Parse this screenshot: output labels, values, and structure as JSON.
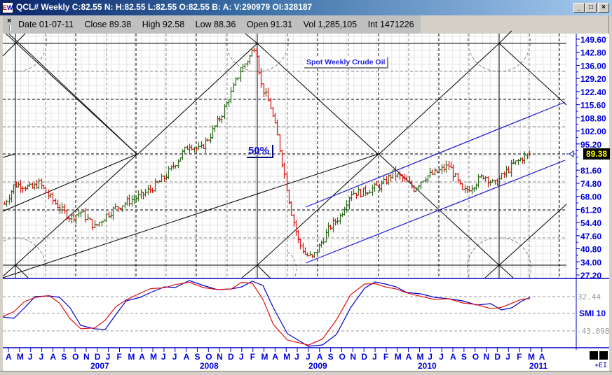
{
  "window": {
    "title": "QCL# Weekly C:82.55 N: H:82.55 L:82.55 O:82.55 B: A: V:290979 OI:328187",
    "app_icon": "EW",
    "buttons": {
      "minimize": "_",
      "maximize": "□",
      "close": "×"
    }
  },
  "infobar": {
    "close_glyph": "×",
    "date": "Date 01-07-11",
    "close": "Close 89.38",
    "high": "High 92.58",
    "low": "Low 88.36",
    "open": "Open 91.31",
    "vol": "Vol 1,285,105",
    "int": "Int 1471226"
  },
  "annotations": {
    "title_note": "Spot Weekly Crude Oil",
    "fifty_pct": "50%"
  },
  "price_axis": {
    "last_price": "89.38",
    "last_price_bg": "#000000",
    "last_price_fg": "#ffff00"
  },
  "indicator": {
    "name": "SMI 10",
    "upper": "32.44",
    "lower": "-43.098",
    "ei_label": "+EI"
  },
  "colors": {
    "up_bar": "#2e6b1e",
    "down_bar": "#e01010",
    "axis": "#0000e0",
    "channel": "#1a1ad0",
    "smi_line": "#0000d0",
    "signal_line": "#e01010"
  },
  "chart_data": {
    "type": "bar",
    "title": "Spot Weekly Crude Oil",
    "symbol": "QCL#",
    "interval": "Weekly",
    "price_axis_ticks": [
      149.6,
      142.8,
      136.0,
      129.2,
      122.4,
      115.6,
      108.8,
      102.0,
      95.2,
      89.38,
      81.6,
      74.8,
      68.0,
      61.2,
      54.4,
      47.6,
      40.8,
      34.0,
      27.2
    ],
    "ylim": [
      27.2,
      149.6
    ],
    "month_ticks": [
      "A",
      "M",
      "J",
      "J",
      "A",
      "S",
      "O",
      "N",
      "D",
      "J",
      "F",
      "M",
      "A",
      "M",
      "J",
      "J",
      "A",
      "S",
      "O",
      "N",
      "D",
      "J",
      "F",
      "M",
      "A",
      "M",
      "J",
      "J",
      "A",
      "S",
      "O",
      "N",
      "D",
      "J",
      "F",
      "M",
      "A",
      "M",
      "J",
      "J",
      "A",
      "S",
      "O",
      "N",
      "D",
      "J",
      "F",
      "M",
      "A"
    ],
    "year_labels": [
      "2007",
      "2008",
      "2009",
      "2010",
      "2011"
    ],
    "approx_weekly_closes": {
      "2006-04": 68,
      "2006-07": 75,
      "2006-10": 60,
      "2007-01": 53,
      "2007-04": 64,
      "2007-07": 74,
      "2007-10": 88,
      "2008-01": 92,
      "2008-04": 115,
      "2008-07": 147,
      "2008-10": 70,
      "2009-01": 36,
      "2009-02": 34,
      "2009-05": 60,
      "2009-08": 71,
      "2009-10": 80,
      "2010-01": 80,
      "2010-04": 85,
      "2010-05": 70,
      "2010-08": 75,
      "2010-11": 84,
      "2011-01": 89.38
    },
    "annotations": [
      "50% retracement near 89",
      "Gann fan lines and square grid",
      "Ascending blue channel from Dec 2008 lows"
    ],
    "indicator": {
      "name": "SMI 10",
      "series": [
        "SMI (blue)",
        "Signal (red)"
      ],
      "levels": [
        32.44,
        -43.098
      ]
    }
  }
}
